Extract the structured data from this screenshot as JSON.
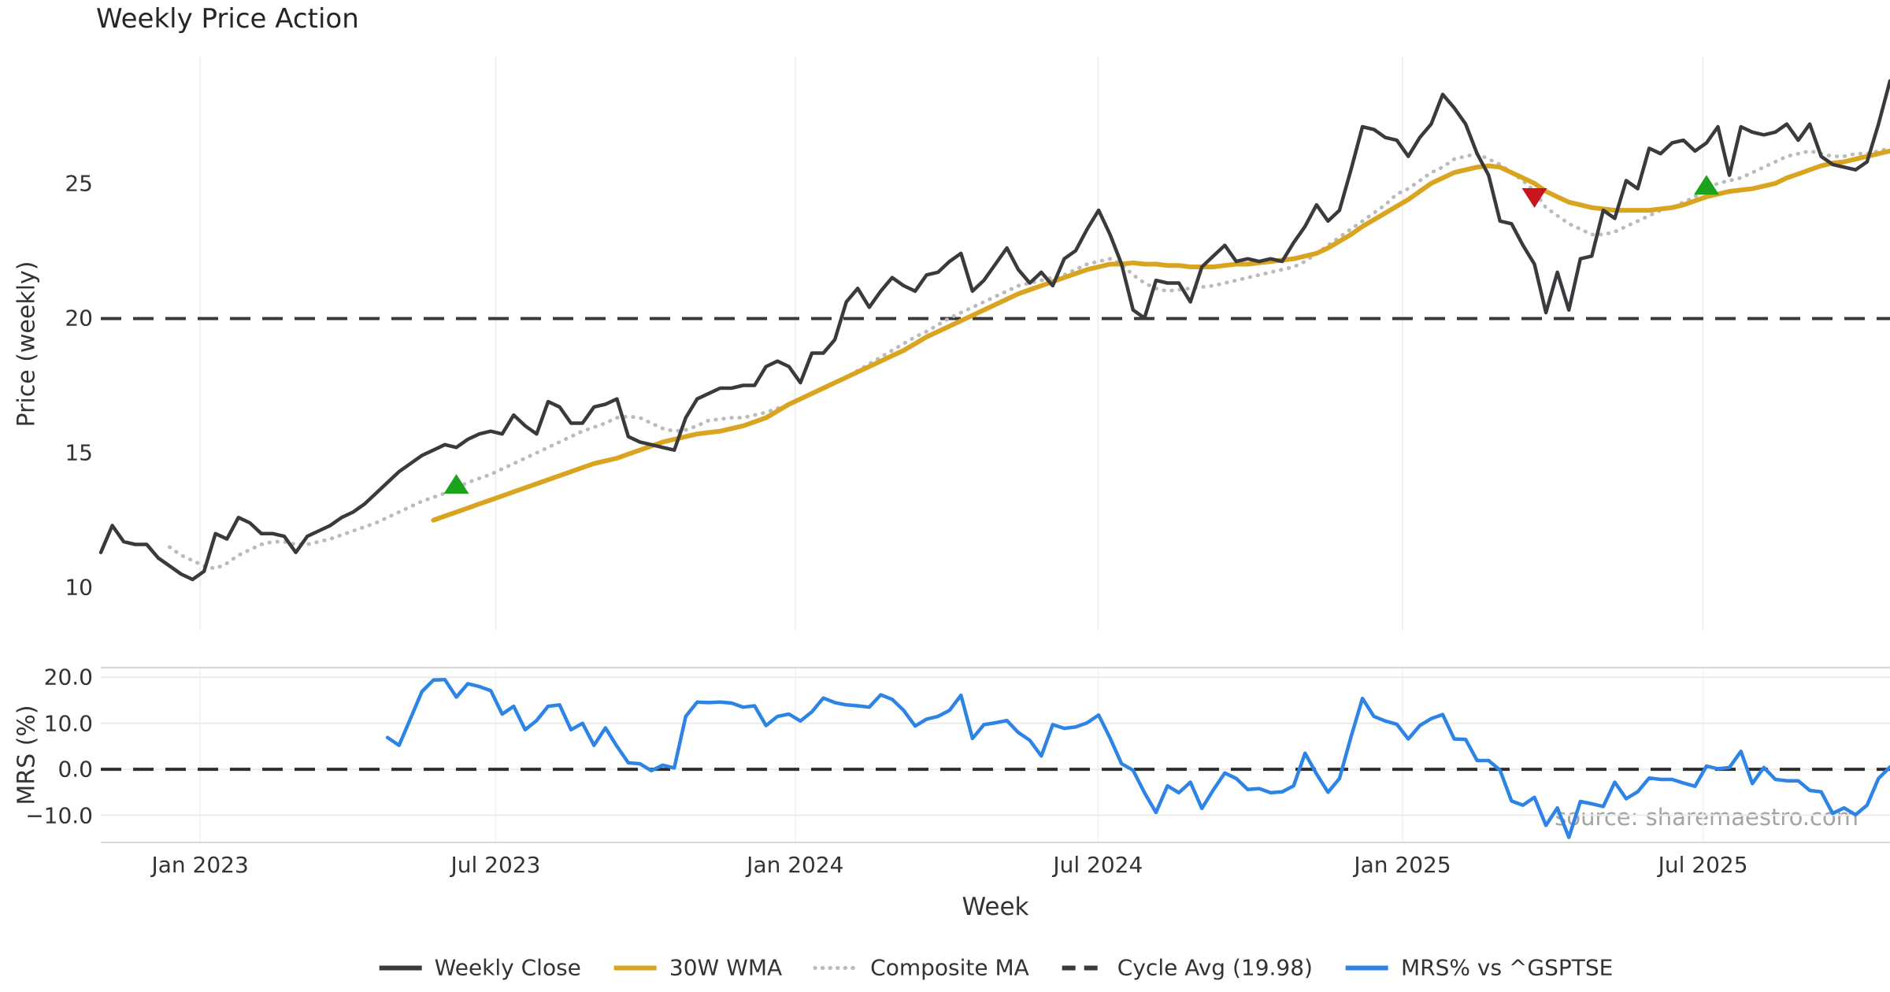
{
  "title": "Weekly Price Action",
  "source_note": "source: sharemaestro.com",
  "legend": {
    "items": [
      {
        "label": "Weekly Close",
        "color": "#3A3A3E",
        "style": "solid"
      },
      {
        "label": "30W WMA",
        "color": "#D9A520",
        "style": "solid"
      },
      {
        "label": "Composite MA",
        "color": "#BBBBBB",
        "style": "dotted"
      },
      {
        "label": "Cycle Avg (19.98)",
        "color": "#3A3A3E",
        "style": "dashed"
      },
      {
        "label": "MRS% vs ^GSPTSE",
        "color": "#2D84E4",
        "style": "solid"
      }
    ]
  },
  "chart_data": {
    "type": "line",
    "x_unit": "weekly (Nov 2022 - Nov 2025)",
    "n_points": 157,
    "x_axis": {
      "label": "Week",
      "ticks": [
        {
          "label": "Jan 2023",
          "week": 8.66
        },
        {
          "label": "Jul 2023",
          "week": 34.43
        },
        {
          "label": "Jan 2024",
          "week": 60.55
        },
        {
          "label": "Jul 2024",
          "week": 86.95
        },
        {
          "label": "Jan 2025",
          "week": 113.5
        },
        {
          "label": "Jul 2025",
          "week": 139.7
        }
      ]
    },
    "price_panel": {
      "ylabel": "Price (weekly)",
      "ylim": [
        8.4,
        29.7
      ],
      "yticks": [
        {
          "label": "25",
          "value": 25
        },
        {
          "label": "20",
          "value": 20
        },
        {
          "label": "15",
          "value": 15
        },
        {
          "label": "10",
          "value": 10
        }
      ],
      "cycle_avg": 19.98,
      "grid": "vertical-only",
      "series": [
        {
          "name": "Weekly Close",
          "color": "#3A3A3E",
          "style": "solid",
          "width": 4.5,
          "values": [
            11.3,
            12.3,
            11.7,
            11.6,
            11.6,
            11.1,
            10.8,
            10.5,
            10.3,
            10.6,
            12.0,
            11.8,
            12.6,
            12.4,
            12.0,
            12.0,
            11.9,
            11.3,
            11.9,
            12.1,
            12.3,
            12.6,
            12.8,
            13.1,
            13.5,
            13.9,
            14.3,
            14.6,
            14.9,
            15.1,
            15.3,
            15.2,
            15.5,
            15.7,
            15.8,
            15.7,
            16.4,
            16.0,
            15.7,
            16.9,
            16.7,
            16.1,
            16.1,
            16.7,
            16.8,
            17.0,
            15.6,
            15.4,
            15.3,
            15.2,
            15.1,
            16.3,
            17.0,
            17.2,
            17.4,
            17.4,
            17.5,
            17.5,
            18.2,
            18.4,
            18.2,
            17.6,
            18.7,
            18.7,
            19.2,
            20.6,
            21.1,
            20.4,
            21.0,
            21.5,
            21.2,
            21.0,
            21.6,
            21.7,
            22.1,
            22.4,
            21.0,
            21.4,
            22.0,
            22.6,
            21.8,
            21.3,
            21.7,
            21.2,
            22.2,
            22.5,
            23.3,
            24.0,
            23.1,
            22.0,
            20.3,
            20.0,
            21.4,
            21.3,
            21.3,
            20.6,
            21.9,
            22.3,
            22.7,
            22.1,
            22.2,
            22.1,
            22.2,
            22.1,
            22.8,
            23.4,
            24.2,
            23.6,
            24.0,
            25.5,
            27.1,
            27.0,
            26.7,
            26.6,
            26.0,
            26.7,
            27.2,
            28.3,
            27.8,
            27.2,
            26.1,
            25.3,
            23.6,
            23.5,
            22.7,
            22.0,
            20.2,
            21.7,
            20.3,
            22.2,
            22.3,
            24.0,
            23.7,
            25.1,
            24.8,
            26.3,
            26.1,
            26.5,
            26.6,
            26.2,
            26.5,
            27.1,
            25.3,
            27.1,
            26.9,
            26.8,
            26.9,
            27.2,
            26.6,
            27.2,
            26.0,
            25.7,
            25.6,
            25.5,
            25.8,
            27.2,
            28.8
          ]
        },
        {
          "name": "30W WMA",
          "color": "#D9A520",
          "style": "solid",
          "width": 6,
          "values": [
            null,
            null,
            null,
            null,
            null,
            null,
            null,
            null,
            null,
            null,
            null,
            null,
            null,
            null,
            null,
            null,
            null,
            null,
            null,
            null,
            null,
            null,
            null,
            null,
            null,
            null,
            null,
            null,
            null,
            12.5,
            12.65,
            12.8,
            12.95,
            13.1,
            13.25,
            13.4,
            13.55,
            13.7,
            13.85,
            14.0,
            14.15,
            14.3,
            14.45,
            14.6,
            14.7,
            14.8,
            14.95,
            15.1,
            15.25,
            15.4,
            15.5,
            15.6,
            15.7,
            15.75,
            15.8,
            15.9,
            16.0,
            16.15,
            16.3,
            16.55,
            16.8,
            17.0,
            17.2,
            17.4,
            17.6,
            17.8,
            18.0,
            18.2,
            18.4,
            18.6,
            18.8,
            19.05,
            19.3,
            19.5,
            19.7,
            19.9,
            20.1,
            20.3,
            20.5,
            20.7,
            20.9,
            21.05,
            21.2,
            21.35,
            21.5,
            21.65,
            21.8,
            21.9,
            22.0,
            22.0,
            22.05,
            22.0,
            22.0,
            21.95,
            21.95,
            21.9,
            21.9,
            21.9,
            21.95,
            22.0,
            22.0,
            22.05,
            22.1,
            22.15,
            22.2,
            22.3,
            22.4,
            22.6,
            22.85,
            23.1,
            23.4,
            23.65,
            23.9,
            24.15,
            24.4,
            24.7,
            25.0,
            25.2,
            25.4,
            25.5,
            25.6,
            25.65,
            25.6,
            25.4,
            25.2,
            25.0,
            24.7,
            24.5,
            24.3,
            24.2,
            24.1,
            24.05,
            24.0,
            24.0,
            24.0,
            24.0,
            24.05,
            24.1,
            24.2,
            24.35,
            24.5,
            24.6,
            24.7,
            24.75,
            24.8,
            24.9,
            25.0,
            25.2,
            25.35,
            25.5,
            25.65,
            25.75,
            25.8,
            25.9,
            26.0,
            26.1,
            26.2
          ]
        },
        {
          "name": "Composite MA",
          "color": "#BBBBBB",
          "style": "dotted",
          "width": 4.8,
          "values": [
            null,
            null,
            null,
            null,
            null,
            null,
            11.5,
            11.2,
            11.0,
            10.8,
            10.7,
            10.9,
            11.2,
            11.4,
            11.6,
            11.7,
            11.7,
            11.6,
            11.6,
            11.7,
            11.8,
            11.95,
            12.1,
            12.25,
            12.4,
            12.6,
            12.8,
            13.0,
            13.2,
            13.35,
            13.5,
            13.7,
            13.9,
            14.05,
            14.2,
            14.4,
            14.6,
            14.8,
            15.0,
            15.2,
            15.4,
            15.6,
            15.8,
            15.95,
            16.1,
            16.3,
            16.35,
            16.3,
            16.1,
            15.9,
            15.8,
            15.85,
            16.0,
            16.2,
            16.25,
            16.3,
            16.3,
            16.4,
            16.5,
            16.65,
            16.8,
            17.0,
            17.2,
            17.4,
            17.6,
            17.8,
            18.05,
            18.3,
            18.55,
            18.8,
            19.05,
            19.3,
            19.5,
            19.75,
            20.0,
            20.2,
            20.4,
            20.6,
            20.8,
            21.0,
            21.2,
            21.3,
            21.4,
            21.5,
            21.6,
            21.8,
            22.0,
            22.1,
            22.2,
            22.0,
            21.6,
            21.3,
            21.1,
            21.0,
            21.05,
            21.1,
            21.15,
            21.2,
            21.3,
            21.4,
            21.5,
            21.6,
            21.7,
            21.8,
            21.9,
            22.1,
            22.4,
            22.7,
            23.0,
            23.3,
            23.6,
            23.9,
            24.2,
            24.6,
            24.8,
            25.1,
            25.4,
            25.6,
            25.9,
            26.0,
            26.1,
            25.9,
            25.7,
            25.4,
            25.1,
            24.7,
            24.1,
            23.8,
            23.5,
            23.3,
            23.1,
            23.1,
            23.2,
            23.4,
            23.6,
            23.8,
            24.0,
            24.1,
            24.3,
            24.5,
            24.8,
            25.0,
            25.1,
            25.2,
            25.4,
            25.6,
            25.8,
            26.0,
            26.1,
            26.2,
            26.1,
            26.0,
            26.0,
            26.1,
            26.1,
            26.2,
            26.3
          ]
        }
      ],
      "markers": [
        {
          "type": "buy",
          "shape": "triangle-up",
          "color": "#1CA21C",
          "week": 31,
          "price": 13.8
        },
        {
          "type": "sell",
          "shape": "triangle-down",
          "color": "#C9161D",
          "week": 125,
          "price": 24.5
        },
        {
          "type": "buy",
          "shape": "triangle-up",
          "color": "#1CA21C",
          "week": 140,
          "price": 24.9
        }
      ]
    },
    "mrs_panel": {
      "ylabel": "MRS (%)",
      "ylim": [
        -15.9,
        22.1
      ],
      "yticks": [
        {
          "label": "20.0",
          "value": 20
        },
        {
          "label": "10.0",
          "value": 10
        },
        {
          "label": "0.0",
          "value": 0
        },
        {
          "label": "−10.0",
          "value": -10
        }
      ],
      "zero_line": 0,
      "grid": "horizontal",
      "series": [
        {
          "name": "MRS% vs ^GSPTSE",
          "color": "#2D84E4",
          "style": "solid",
          "width": 4.5,
          "values": [
            null,
            null,
            null,
            null,
            null,
            null,
            null,
            null,
            null,
            null,
            null,
            null,
            null,
            null,
            null,
            null,
            null,
            null,
            null,
            null,
            null,
            null,
            null,
            null,
            null,
            6.9,
            5.2,
            11.0,
            16.9,
            19.4,
            19.5,
            15.7,
            18.6,
            18.0,
            17.1,
            12.0,
            13.7,
            8.6,
            10.6,
            13.7,
            14.0,
            8.6,
            10.0,
            5.2,
            9.0,
            5.0,
            1.4,
            1.2,
            -0.3,
            0.9,
            0.3,
            11.5,
            14.6,
            14.5,
            14.6,
            14.4,
            13.5,
            13.8,
            9.5,
            11.5,
            12.0,
            10.5,
            12.5,
            15.5,
            14.5,
            14.0,
            13.8,
            13.5,
            16.2,
            15.2,
            12.8,
            9.4,
            10.9,
            11.5,
            12.8,
            16.1,
            6.7,
            9.7,
            10.1,
            10.6,
            8.0,
            6.3,
            2.9,
            9.7,
            8.9,
            9.2,
            10.1,
            11.8,
            6.8,
            1.2,
            -0.2,
            -5.1,
            -9.4,
            -3.6,
            -5.1,
            -2.8,
            -8.5,
            -4.5,
            -0.8,
            -2.0,
            -4.4,
            -4.2,
            -5.1,
            -4.9,
            -3.6,
            3.5,
            -1.0,
            -5.0,
            -2.0,
            7.0,
            15.4,
            11.5,
            10.5,
            9.8,
            6.6,
            9.5,
            11.0,
            11.9,
            6.6,
            6.5,
            1.9,
            1.9,
            -0.2,
            -6.9,
            -7.8,
            -6.1,
            -12.2,
            -8.4,
            -14.8,
            -7.0,
            -7.5,
            -8.1,
            -2.8,
            -6.4,
            -4.9,
            -1.9,
            -2.2,
            -2.2,
            -3.0,
            -3.7,
            0.7,
            0.1,
            0.4,
            3.9,
            -3.1,
            0.4,
            -2.2,
            -2.5,
            -2.5,
            -4.6,
            -4.9,
            -9.6,
            -8.4,
            -9.9,
            -7.8,
            -2.0,
            0.5
          ]
        }
      ]
    }
  }
}
